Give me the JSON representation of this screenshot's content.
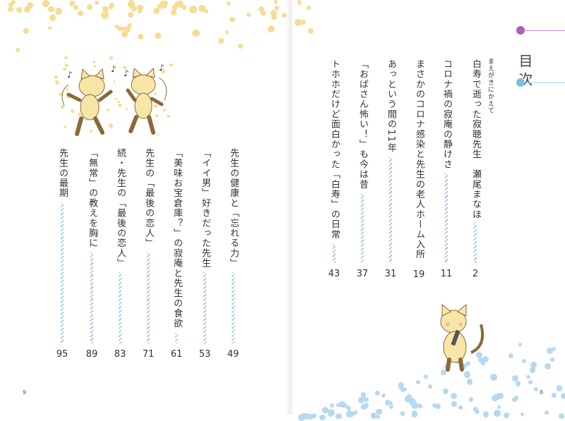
{
  "toc_title": "目次",
  "colors": {
    "purple": "#b05fb0",
    "blue": "#78bfe8",
    "hatch_blue": "#8fcbe6",
    "hatch_purple": "#c9a6d6",
    "dots_yellow": "#f6dc94",
    "dots_blue": "#b7d9f0"
  },
  "right_page": {
    "folio": "8",
    "preface_label": "まえがきにかえて",
    "entries": [
      {
        "title": "白寿で逝った寂聴先生　瀬尾まなほ",
        "page": "2",
        "hatch": "blue"
      },
      {
        "title": "コロナ禍の寂庵の静けさ",
        "page": "11",
        "hatch": "purple"
      },
      {
        "title": "まさかのコロナ感染と先生の老人ホーム入所",
        "page": "19",
        "hatch": "blue"
      },
      {
        "title": "あっという間の11年",
        "page": "31",
        "hatch": "purple"
      },
      {
        "title": "「おばさん怖い！」も今は昔",
        "page": "37",
        "hatch": "blue"
      },
      {
        "title": "トホホだけど面白かった「白寿」の日常",
        "page": "43",
        "hatch": "purple"
      }
    ]
  },
  "left_page": {
    "folio": "9",
    "entries": [
      {
        "title": "先生の健康と「忘れる力」",
        "page": "49",
        "hatch": "blue"
      },
      {
        "title": "「イイ男」好きだった先生",
        "page": "53",
        "hatch": "purple"
      },
      {
        "title": "「美味お宝倉庫？」の寂庵と先生の食欲",
        "page": "61",
        "hatch": "blue"
      },
      {
        "title": "先生の「最後の恋人」",
        "page": "71",
        "hatch": "purple"
      },
      {
        "title": "続・先生の「最後の恋人」",
        "page": "83",
        "hatch": "blue"
      },
      {
        "title": "「無常」の教えを胸に",
        "page": "89",
        "hatch": "purple"
      },
      {
        "title": "先生の最期",
        "page": "95",
        "hatch": "blue"
      }
    ]
  },
  "illustrations": [
    "dancing-cats-illustration",
    "cat-with-microphone-illustration"
  ]
}
